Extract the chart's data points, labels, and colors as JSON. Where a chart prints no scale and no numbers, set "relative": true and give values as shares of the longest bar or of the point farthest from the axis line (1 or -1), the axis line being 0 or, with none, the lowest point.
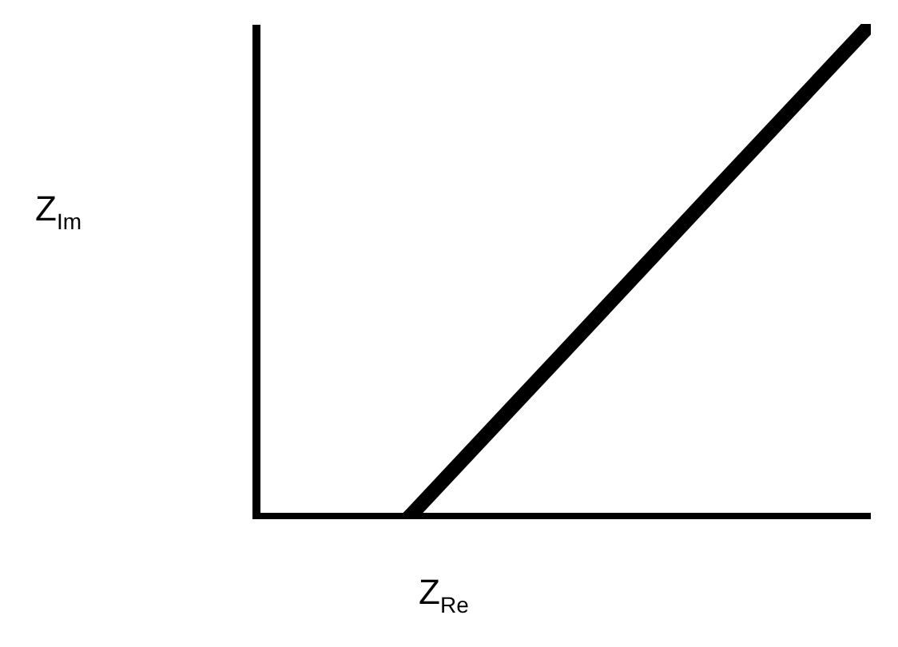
{
  "chart_data": {
    "type": "line",
    "relative": true,
    "xlabel": "Z$_{Re}$",
    "ylabel": "Z$_{Im}$",
    "categories": [
      null,
      null,
      null,
      null,
      null
    ],
    "series": [
      {
        "color": "#000000",
        "values": [
          null,
          0,
          0.333,
          0.667,
          1
        ]
      }
    ],
    "grid": false,
    "line_style": "solid"
  }
}
